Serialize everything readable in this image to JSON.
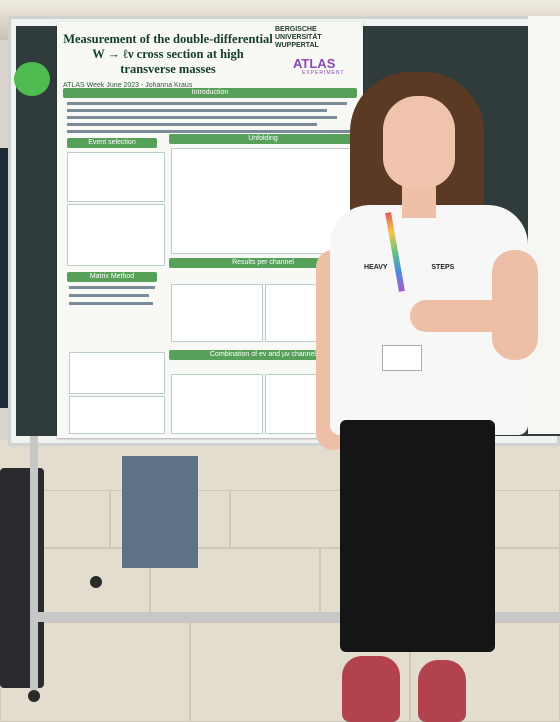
{
  "poster": {
    "title": "Measurement of the double-differential W → ℓν cross section at high transverse masses",
    "subtitle": "ATLAS Week June 2023 - Johanna Kraus",
    "university_logo": "BERGISCHE UNIVERSITÄT WUPPERTAL",
    "experiment_logo": "ATLAS",
    "experiment_sub": "EXPERIMENT",
    "sections": [
      "Introduction",
      "Event selection",
      "Unfolding",
      "Matrix Method",
      "Results per channel",
      "Combination of eν and μν channel"
    ]
  },
  "shirt_text": {
    "left": "HEAVY",
    "right": "STEPS"
  },
  "colors": {
    "board": "#2f3c3b",
    "poster_header": "#57a05a",
    "shirt": "#f7f7f7",
    "pants": "#151515",
    "shoes": "#b3424f"
  }
}
